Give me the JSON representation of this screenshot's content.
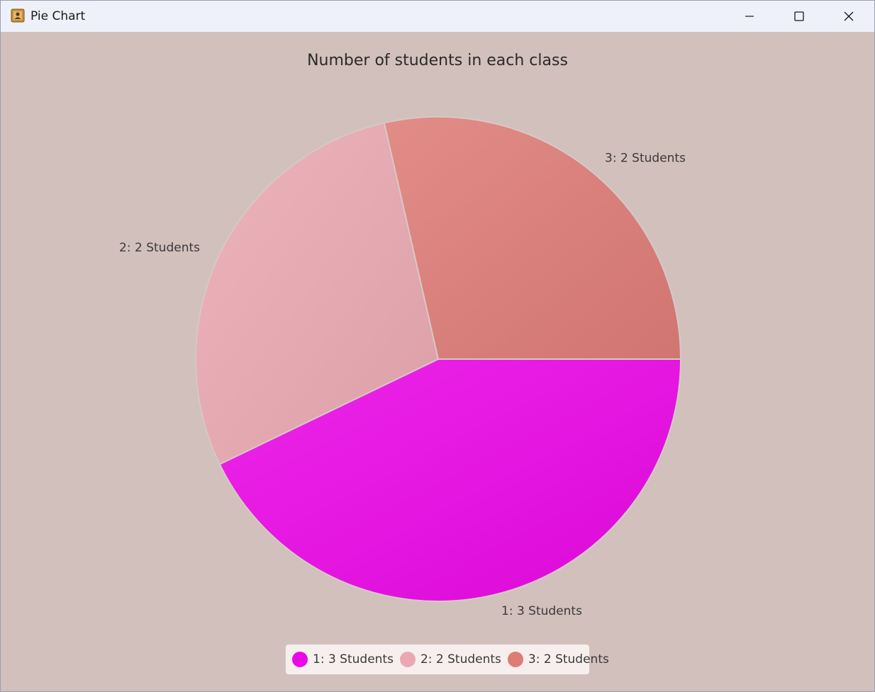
{
  "window": {
    "title": "Pie Chart",
    "app_icon": "java-app-icon",
    "controls": [
      "minimize-icon",
      "maximize-icon",
      "close-icon"
    ]
  },
  "chart_data": {
    "type": "pie",
    "title": "Number of students in each class",
    "slices": [
      {
        "label": "1: 3 Students",
        "value": 3,
        "color": "#ea08e6"
      },
      {
        "label": "2: 2 Students",
        "value": 2,
        "color": "#eaa9b2"
      },
      {
        "label": "3: 2 Students",
        "value": 2,
        "color": "#de7c78"
      }
    ],
    "legend": {
      "position": "bottom",
      "entries": [
        "1: 3 Students",
        "2: 2 Students",
        "3: 2 Students"
      ]
    },
    "background_color": "#d2c0bc"
  }
}
